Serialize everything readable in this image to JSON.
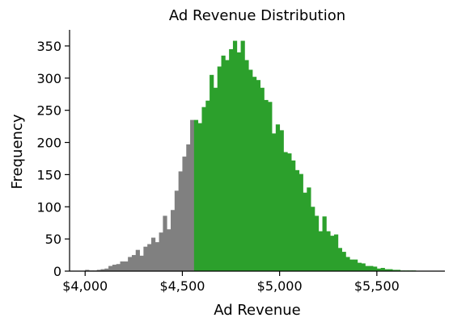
{
  "chart_data": {
    "type": "bar",
    "title": "Ad Revenue Distribution",
    "xlabel": "Ad Revenue",
    "ylabel": "Frequency",
    "xlim": [
      3920,
      5850
    ],
    "ylim": [
      0,
      375
    ],
    "x_ticks": [
      4000,
      4500,
      5000,
      5500
    ],
    "x_tick_labels": [
      "$4,000",
      "$4,500",
      "$5,000",
      "$5,500"
    ],
    "y_ticks": [
      0,
      50,
      100,
      150,
      200,
      250,
      300,
      350
    ],
    "y_tick_labels": [
      "0",
      "50",
      "100",
      "150",
      "200",
      "250",
      "300",
      "350"
    ],
    "bin_start": 4000,
    "bin_width": 20,
    "threshold": 4560,
    "colors": {
      "below_threshold": "#808080",
      "above_threshold": "#2ca02c"
    },
    "series": [
      {
        "values": [
          2,
          1,
          1,
          2,
          3,
          4,
          8,
          10,
          11,
          15,
          15,
          22,
          25,
          33,
          24,
          38,
          42,
          52,
          45,
          60,
          86,
          65,
          95,
          125,
          155,
          178,
          197,
          235,
          235,
          230,
          255,
          265,
          305,
          285,
          318,
          335,
          328,
          345,
          358,
          340,
          358,
          328,
          313,
          302,
          297,
          285,
          266,
          263,
          214,
          228,
          219,
          185,
          183,
          172,
          157,
          151,
          122,
          130,
          100,
          86,
          62,
          85,
          62,
          55,
          57,
          36,
          30,
          22,
          18,
          18,
          13,
          12,
          8,
          8,
          7,
          4,
          5,
          3,
          3,
          2,
          2,
          1,
          1,
          1,
          1,
          0,
          0,
          0,
          0,
          0,
          0
        ]
      }
    ]
  }
}
